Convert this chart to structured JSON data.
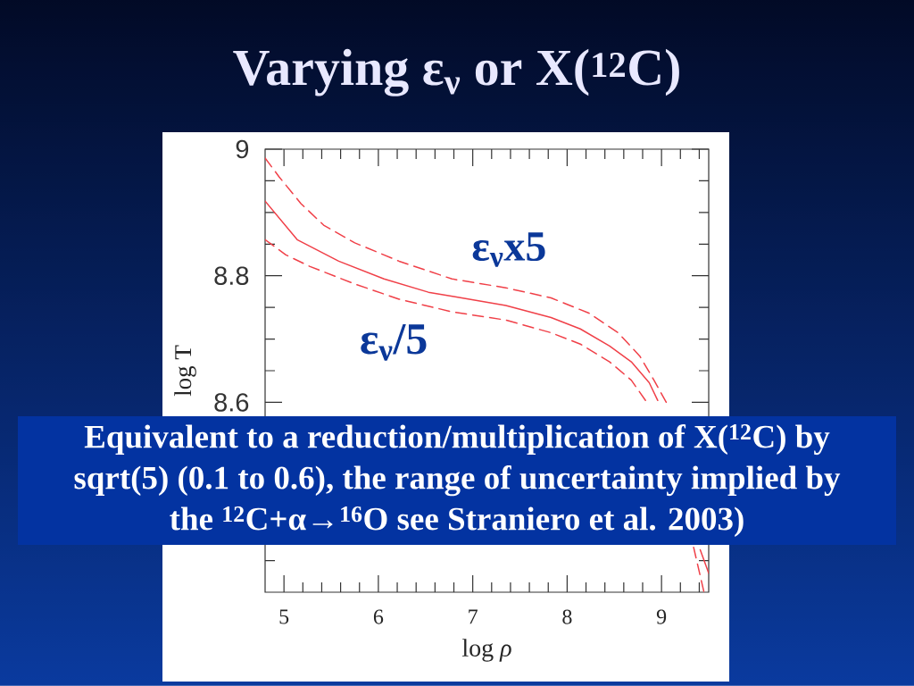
{
  "chart_data": {
    "type": "line",
    "title": "Varying ε$_{ν}$ or X($^{12}$C)",
    "xlabel": "log *ρ*",
    "ylabel": "log T",
    "xlim": [
      4.8,
      9.5
    ],
    "ylim": [
      8.3,
      9
    ],
    "xticks": [
      5,
      {
        "value": 5.2,
        "label": null
      },
      {
        "value": 5.4,
        "label": null
      },
      {
        "value": 5.6,
        "label": null
      },
      {
        "value": 5.8,
        "label": null
      },
      6,
      {
        "value": 6.2,
        "label": null
      },
      {
        "value": 6.4,
        "label": null
      },
      {
        "value": 6.6,
        "label": null
      },
      {
        "value": 6.8,
        "label": null
      },
      7,
      {
        "value": 7.2,
        "label": null
      },
      {
        "value": 7.4,
        "label": null
      },
      {
        "value": 7.6,
        "label": null
      },
      {
        "value": 7.8,
        "label": null
      },
      8,
      {
        "value": 8.2,
        "label": null
      },
      {
        "value": 8.4,
        "label": null
      },
      {
        "value": 8.6,
        "label": null
      },
      {
        "value": 8.8,
        "label": null
      },
      9,
      {
        "value": 9.2,
        "label": null
      },
      {
        "value": 9.4,
        "label": null
      }
    ],
    "yticks": [
      {
        "value": 8.35,
        "label": null
      },
      8.6,
      {
        "value": 8.65,
        "label": null
      },
      {
        "value": 8.7,
        "label": null
      },
      {
        "value": 8.75,
        "label": null
      },
      8.8,
      {
        "value": 8.85,
        "label": null
      },
      {
        "value": 8.9,
        "label": null
      },
      {
        "value": 8.95,
        "label": null
      },
      9
    ],
    "marker": "none",
    "series": [
      {
        "color": "#f04048",
        "line_style": "solid",
        "x": [
          4.8,
          5.14,
          5.58,
          6.06,
          6.53,
          6.8,
          7.35,
          7.83,
          8.14,
          8.45,
          8.68,
          8.87,
          8.96,
          9.2,
          9.41,
          9.5
        ],
        "values": [
          8.918,
          8.857,
          8.823,
          8.795,
          8.774,
          8.767,
          8.753,
          8.734,
          8.716,
          8.689,
          8.664,
          8.631,
          8.603,
          null,
          8.367,
          8.33
        ]
      },
      {
        "name": "ε$_{ν}$x5",
        "color": "#f04048",
        "line_style": "dashed",
        "x": [
          4.8,
          4.95,
          5.18,
          5.42,
          5.75,
          6.22,
          6.78,
          7.35,
          7.83,
          8.23,
          8.54,
          8.77,
          8.92,
          9.05
        ],
        "values": [
          8.986,
          8.956,
          8.914,
          8.88,
          8.852,
          8.823,
          8.795,
          8.781,
          8.765,
          8.741,
          8.71,
          8.673,
          8.635,
          8.6
        ]
      },
      {
        "name": "ε$_{ν}$/5",
        "color": "#f04048",
        "line_style": "dashed",
        "x": [
          4.8,
          5.02,
          5.27,
          5.75,
          6.22,
          6.78,
          7.35,
          7.83,
          8.14,
          8.45,
          8.68,
          8.83,
          9.1,
          9.34,
          9.45
        ],
        "values": [
          8.857,
          8.833,
          8.815,
          8.787,
          8.763,
          8.743,
          8.73,
          8.71,
          8.692,
          8.664,
          8.635,
          8.603,
          null,
          8.371,
          8.3
        ]
      }
    ],
    "annotations": [
      "Equivalent to a reduction/multiplication of X($^{12}$C) by sqrt(5) (0.1 to 0.6), the range of uncertainty implied by the $^{12}$C+α→$^{16}$O see Straniero et al. 2003)"
    ]
  }
}
